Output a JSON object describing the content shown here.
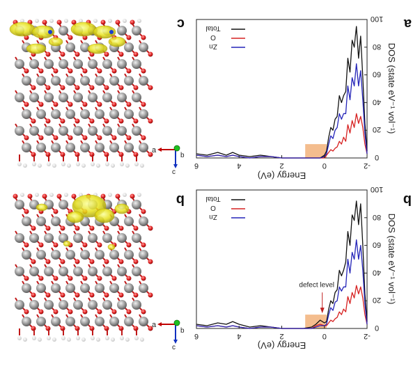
{
  "figure": {
    "note": "Image appears horizontally mirrored; energy axis runs from -2 (right) to 6 (left)."
  },
  "chart_data": [
    {
      "type": "line",
      "panel_letter": "a",
      "structure_letter": "c",
      "axes_label": "b",
      "axis_a_label": "a",
      "axis_c_label": "c",
      "ylabel": "DOS (state eV⁻¹ vol⁻¹)",
      "xlabel": "Energy (eV)",
      "xlim": [
        -2,
        6
      ],
      "ylim": [
        0,
        100
      ],
      "xticks": [
        "-2",
        "0",
        "2",
        "4",
        "6"
      ],
      "yticks": [
        "0",
        "20",
        "40",
        "60",
        "80",
        "100"
      ],
      "legend": [
        "Total",
        "O",
        "Zn"
      ],
      "legend_position": "top-left",
      "shaded_region": {
        "x_start": -0.1,
        "x_end": 0.9,
        "color": "#f2b27a"
      },
      "x": [
        -2.0,
        -1.9,
        -1.8,
        -1.7,
        -1.6,
        -1.5,
        -1.4,
        -1.3,
        -1.2,
        -1.1,
        -1.0,
        -0.9,
        -0.8,
        -0.7,
        -0.6,
        -0.5,
        -0.4,
        -0.3,
        -0.2,
        -0.1,
        0.0,
        0.2,
        0.6,
        1.0,
        1.5,
        2.0,
        2.5,
        3.0,
        3.5,
        4.0,
        4.3,
        4.6,
        5.0,
        5.5,
        6.0
      ],
      "series": [
        {
          "name": "Total",
          "color": "#111111",
          "values": [
            5,
            25,
            58,
            88,
            72,
            95,
            80,
            85,
            62,
            72,
            48,
            45,
            40,
            45,
            30,
            28,
            20,
            22,
            15,
            5,
            2,
            0,
            0,
            0,
            0,
            0,
            1,
            2,
            1,
            2,
            4,
            2,
            4,
            2,
            3
          ]
        },
        {
          "name": "O",
          "color": "#d62020",
          "values": [
            3,
            10,
            22,
            30,
            25,
            32,
            22,
            27,
            18,
            24,
            12,
            15,
            10,
            12,
            8,
            7,
            5,
            6,
            4,
            2,
            0,
            0,
            0,
            0,
            0,
            0,
            1,
            1,
            0,
            1,
            2,
            1,
            2,
            1,
            2
          ]
        },
        {
          "name": "Zn",
          "color": "#2323b8",
          "values": [
            3,
            18,
            42,
            63,
            52,
            68,
            52,
            58,
            42,
            52,
            32,
            32,
            28,
            32,
            22,
            20,
            14,
            16,
            10,
            3,
            1,
            0,
            0,
            0,
            0,
            0,
            1,
            1,
            0,
            1,
            2,
            1,
            2,
            1,
            2
          ]
        }
      ]
    },
    {
      "type": "line",
      "panel_letter": "b",
      "structure_letter": "b",
      "axes_label": "b",
      "axis_a_label": "a",
      "axis_c_label": "c",
      "ylabel": "DOS (state eV⁻¹ vol⁻¹)",
      "xlabel": "Energy (eV)",
      "xlim": [
        -2,
        6
      ],
      "ylim": [
        0,
        100
      ],
      "xticks": [
        "-2",
        "0",
        "2",
        "4",
        "6"
      ],
      "yticks": [
        "0",
        "20",
        "40",
        "60",
        "80",
        "100"
      ],
      "legend": [
        "Total",
        "O",
        "Zn"
      ],
      "legend_position": "top-left",
      "annotation": "defect level",
      "shaded_region": {
        "x_start": -0.1,
        "x_end": 0.9,
        "color": "#f2b27a"
      },
      "x": [
        -2.0,
        -1.9,
        -1.8,
        -1.7,
        -1.6,
        -1.5,
        -1.4,
        -1.3,
        -1.2,
        -1.1,
        -1.0,
        -0.9,
        -0.8,
        -0.7,
        -0.6,
        -0.5,
        -0.4,
        -0.3,
        -0.2,
        -0.1,
        0.0,
        0.2,
        0.4,
        0.6,
        1.0,
        1.5,
        2.0,
        2.5,
        3.0,
        3.5,
        4.0,
        4.3,
        4.6,
        5.0,
        5.5,
        6.0
      ],
      "series": [
        {
          "name": "Total",
          "color": "#111111",
          "values": [
            5,
            25,
            60,
            90,
            75,
            92,
            78,
            82,
            60,
            70,
            48,
            42,
            38,
            42,
            28,
            26,
            18,
            20,
            14,
            5,
            4,
            6,
            3,
            1,
            0,
            0,
            0,
            1,
            2,
            1,
            3,
            5,
            3,
            4,
            2,
            3
          ]
        },
        {
          "name": "O",
          "color": "#d62020",
          "values": [
            3,
            10,
            22,
            30,
            25,
            31,
            22,
            26,
            18,
            23,
            12,
            14,
            10,
            12,
            8,
            7,
            5,
            6,
            4,
            2,
            2,
            3,
            2,
            0,
            0,
            0,
            0,
            1,
            1,
            0,
            1,
            2,
            1,
            2,
            1,
            2
          ]
        },
        {
          "name": "Zn",
          "color": "#2323b8",
          "values": [
            3,
            18,
            42,
            60,
            50,
            64,
            50,
            55,
            40,
            50,
            30,
            30,
            27,
            30,
            20,
            19,
            13,
            15,
            10,
            3,
            2,
            2,
            1,
            0,
            0,
            0,
            0,
            1,
            1,
            0,
            1,
            2,
            1,
            2,
            1,
            2
          ]
        }
      ]
    }
  ]
}
